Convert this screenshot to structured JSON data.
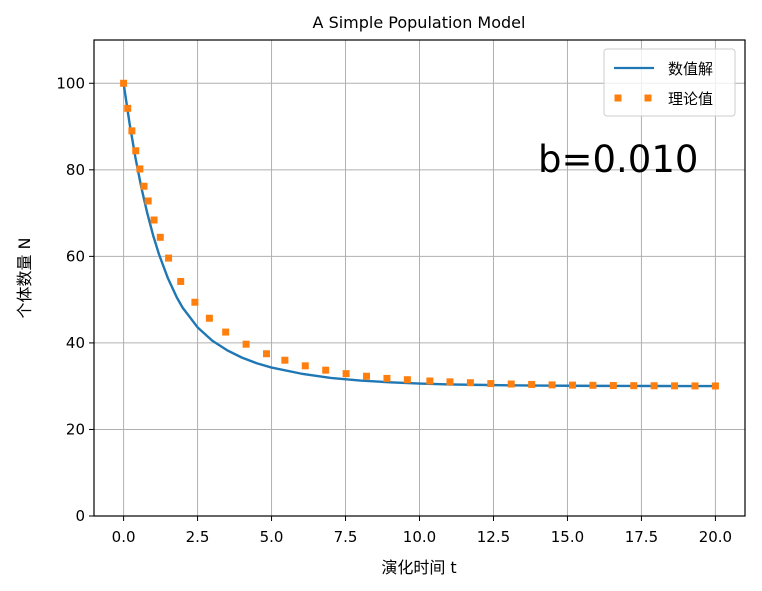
{
  "chart_data": {
    "type": "line",
    "title": "A Simple Population Model",
    "xlabel": "演化时间 t",
    "ylabel": "个体数量 N",
    "xlim": [
      -1.0,
      21.0
    ],
    "ylim": [
      0,
      110
    ],
    "xticks": [
      0.0,
      2.5,
      5.0,
      7.5,
      10.0,
      12.5,
      15.0,
      17.5,
      20.0
    ],
    "xtick_labels": [
      "0.0",
      "2.5",
      "5.0",
      "7.5",
      "10.0",
      "12.5",
      "15.0",
      "17.5",
      "20.0"
    ],
    "yticks": [
      0,
      20,
      40,
      60,
      80,
      100
    ],
    "ytick_labels": [
      "0",
      "20",
      "40",
      "60",
      "80",
      "100"
    ],
    "grid": true,
    "legend_position": "top-right",
    "annotation": "b=0.010",
    "series": [
      {
        "name": "数值解",
        "style": "solid line",
        "color": "#1f77b4",
        "x": [
          0.0,
          0.2,
          0.4,
          0.6,
          0.8,
          1.0,
          1.2,
          1.5,
          1.8,
          2.0,
          2.5,
          3.0,
          3.5,
          4.0,
          4.5,
          5.0,
          6.0,
          7.0,
          8.0,
          9.0,
          10.0,
          11.0,
          12.0,
          13.0,
          14.0,
          15.0,
          16.0,
          17.0,
          18.0,
          19.0,
          20.0
        ],
        "y": [
          100.0,
          90.8,
          82.8,
          75.9,
          70.0,
          64.8,
          60.4,
          54.9,
          50.5,
          48.1,
          43.6,
          40.5,
          38.3,
          36.6,
          35.3,
          34.3,
          32.9,
          31.9,
          31.3,
          30.9,
          30.6,
          30.4,
          30.3,
          30.2,
          30.15,
          30.1,
          30.07,
          30.05,
          30.04,
          30.03,
          30.02
        ]
      },
      {
        "name": "理论值",
        "style": "dotted markers",
        "color": "#ff7f0e",
        "x": [
          0.0,
          0.14,
          0.28,
          0.41,
          0.55,
          0.69,
          0.83,
          1.03,
          1.24,
          1.52,
          1.93,
          2.41,
          2.9,
          3.45,
          4.14,
          4.83,
          5.45,
          6.14,
          6.83,
          7.52,
          8.21,
          8.9,
          9.59,
          10.35,
          11.03,
          11.72,
          12.41,
          13.1,
          13.79,
          14.48,
          15.17,
          15.86,
          16.55,
          17.24,
          17.93,
          18.62,
          19.31,
          20.0
        ],
        "y": [
          100.0,
          94.2,
          89.0,
          84.4,
          80.2,
          76.2,
          72.8,
          68.4,
          64.4,
          59.6,
          54.2,
          49.4,
          45.7,
          42.5,
          39.7,
          37.5,
          36.0,
          34.7,
          33.7,
          32.9,
          32.3,
          31.8,
          31.5,
          31.2,
          31.0,
          30.8,
          30.6,
          30.5,
          30.4,
          30.3,
          30.25,
          30.2,
          30.15,
          30.12,
          30.1,
          30.08,
          30.06,
          30.05
        ]
      }
    ]
  }
}
